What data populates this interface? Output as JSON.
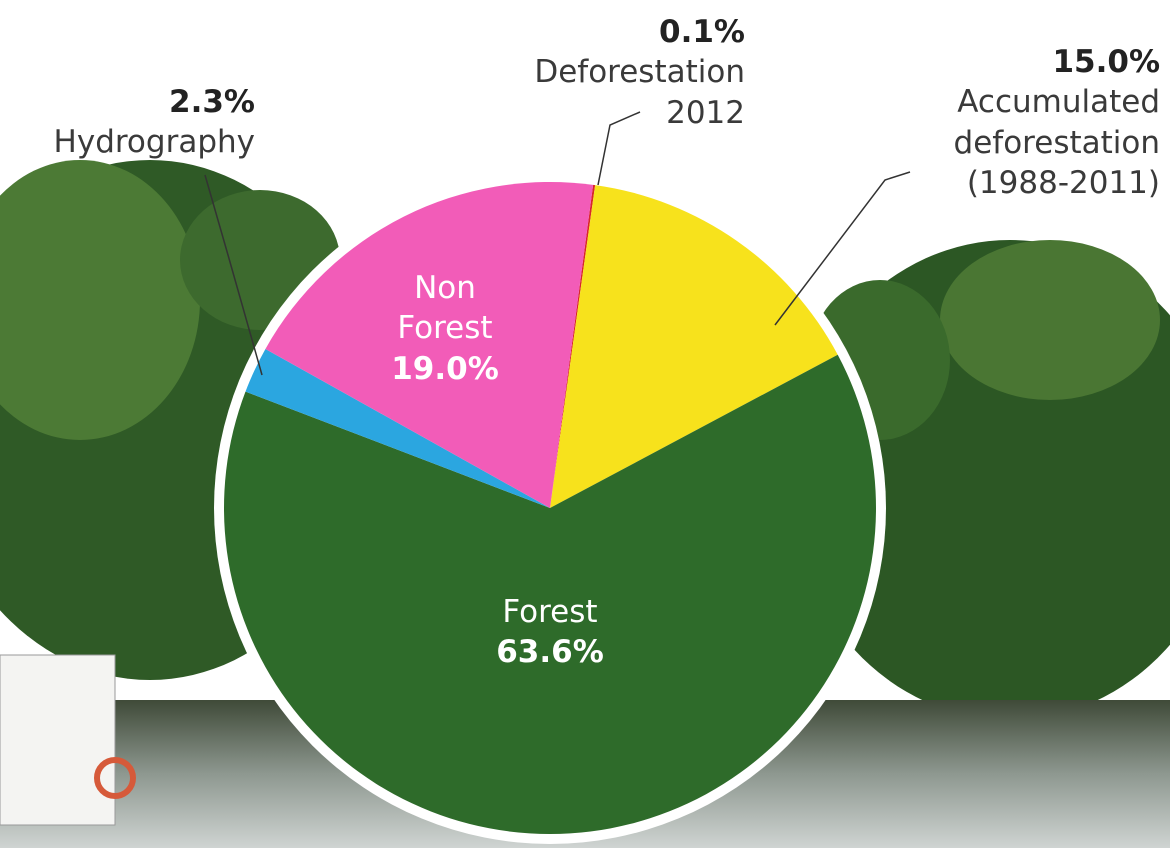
{
  "chart_data": {
    "type": "pie",
    "categories": [
      "Deforestation 2012",
      "Accumulated deforestation (1988-2011)",
      "Forest",
      "Hydrography",
      "Non Forest"
    ],
    "values": [
      0.1,
      15.0,
      63.6,
      2.3,
      19.0
    ],
    "value_labels": [
      "0.1%",
      "15.0%",
      "63.6%",
      "2.3%",
      "19.0%"
    ],
    "colors": [
      "#d9262b",
      "#f7e21c",
      "#2e6b2a",
      "#2ba6e0",
      "#f25cb8"
    ]
  }
}
